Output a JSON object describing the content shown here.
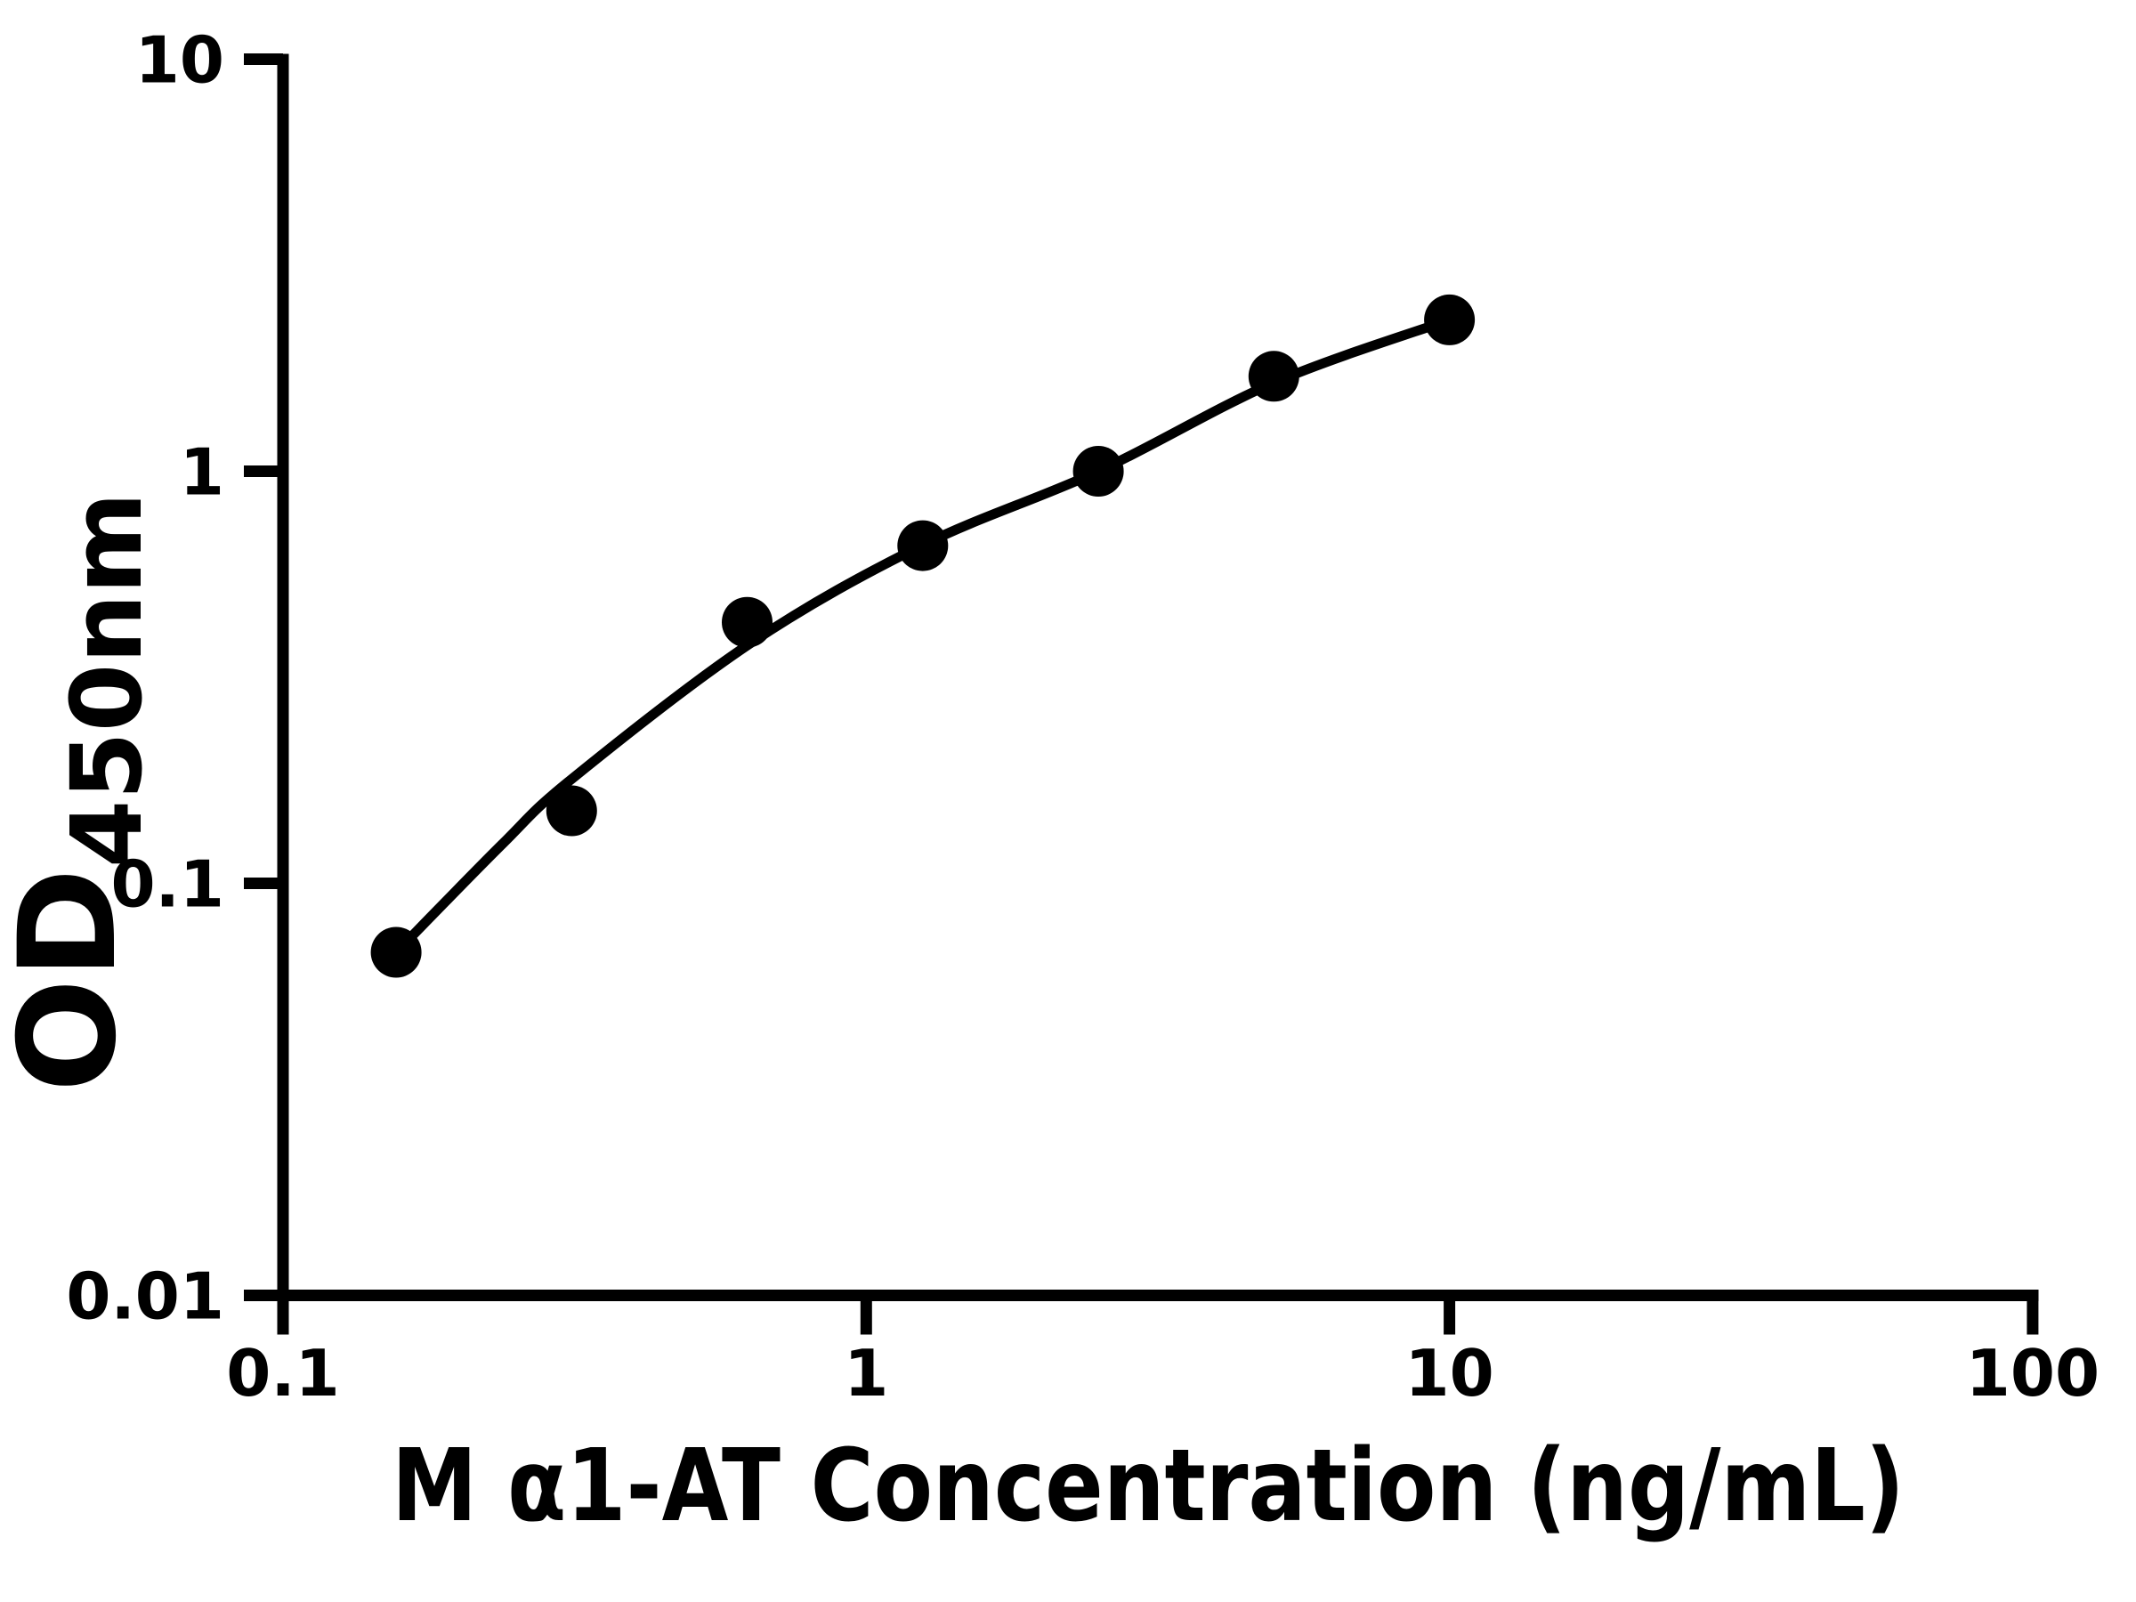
{
  "chart_data": {
    "type": "scatter",
    "title": "",
    "xlabel": "M α1-AT Concentration (ng/mL)",
    "ylabel_main": "OD",
    "ylabel_sub": "450nm",
    "x_scale": "log",
    "y_scale": "log",
    "xlim": [
      0.1,
      100
    ],
    "ylim": [
      0.01,
      10
    ],
    "grid": false,
    "legend": "none",
    "marker_color": "#000000",
    "line_color": "#000000",
    "background_color": "#ffffff",
    "x_ticks": [
      {
        "value": 0.1,
        "label": "0.1"
      },
      {
        "value": 1,
        "label": "1"
      },
      {
        "value": 10,
        "label": "10"
      },
      {
        "value": 100,
        "label": "100"
      }
    ],
    "y_ticks": [
      {
        "value": 0.01,
        "label": "0.01"
      },
      {
        "value": 0.1,
        "label": "0.1"
      },
      {
        "value": 1,
        "label": "1"
      },
      {
        "value": 10,
        "label": "10"
      }
    ],
    "points": [
      {
        "conc": 0.1563,
        "od": 0.068
      },
      {
        "conc": 0.3125,
        "od": 0.15
      },
      {
        "conc": 0.625,
        "od": 0.43
      },
      {
        "conc": 1.25,
        "od": 0.66
      },
      {
        "conc": 2.5,
        "od": 1.0
      },
      {
        "conc": 5.0,
        "od": 1.7
      },
      {
        "conc": 10.0,
        "od": 2.33
      }
    ],
    "fit_curve": [
      [
        0.1563,
        0.068
      ],
      [
        0.237,
        0.124
      ],
      [
        0.3125,
        0.179
      ],
      [
        0.634,
        0.383
      ],
      [
        1.25,
        0.662
      ],
      [
        2.5,
        1.0
      ],
      [
        5.0,
        1.64
      ],
      [
        10.0,
        2.33
      ]
    ]
  }
}
